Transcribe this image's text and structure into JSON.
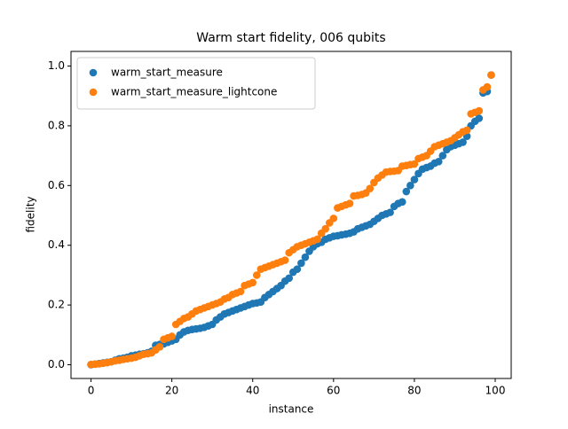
{
  "chart_data": {
    "type": "scatter",
    "title": "Warm start fidelity, 006 qubits",
    "xlabel": "instance",
    "ylabel": "fidelity",
    "x": [
      0,
      1,
      2,
      3,
      4,
      5,
      6,
      7,
      8,
      9,
      10,
      11,
      12,
      13,
      14,
      15,
      16,
      17,
      18,
      19,
      20,
      21,
      22,
      23,
      24,
      25,
      26,
      27,
      28,
      29,
      30,
      31,
      32,
      33,
      34,
      35,
      36,
      37,
      38,
      39,
      40,
      41,
      42,
      43,
      44,
      45,
      46,
      47,
      48,
      49,
      50,
      51,
      52,
      53,
      54,
      55,
      56,
      57,
      58,
      59,
      60,
      61,
      62,
      63,
      64,
      65,
      66,
      67,
      68,
      69,
      70,
      71,
      72,
      73,
      74,
      75,
      76,
      77,
      78,
      79,
      80,
      81,
      82,
      83,
      84,
      85,
      86,
      87,
      88,
      89,
      90,
      91,
      92,
      93,
      94,
      95,
      96,
      97,
      98,
      99
    ],
    "series": [
      {
        "name": "warm_start_measure",
        "color": "#1f77b4",
        "values": [
          0.0,
          0.002,
          0.004,
          0.006,
          0.008,
          0.01,
          0.015,
          0.02,
          0.022,
          0.025,
          0.03,
          0.032,
          0.035,
          0.037,
          0.04,
          0.045,
          0.065,
          0.068,
          0.07,
          0.075,
          0.08,
          0.085,
          0.1,
          0.11,
          0.115,
          0.118,
          0.12,
          0.122,
          0.125,
          0.13,
          0.135,
          0.15,
          0.16,
          0.17,
          0.175,
          0.18,
          0.185,
          0.19,
          0.195,
          0.2,
          0.205,
          0.207,
          0.21,
          0.225,
          0.235,
          0.245,
          0.255,
          0.265,
          0.28,
          0.29,
          0.31,
          0.32,
          0.34,
          0.36,
          0.38,
          0.395,
          0.405,
          0.41,
          0.42,
          0.425,
          0.43,
          0.432,
          0.435,
          0.437,
          0.44,
          0.445,
          0.455,
          0.46,
          0.465,
          0.47,
          0.48,
          0.49,
          0.5,
          0.505,
          0.51,
          0.53,
          0.54,
          0.545,
          0.58,
          0.6,
          0.62,
          0.64,
          0.655,
          0.66,
          0.665,
          0.675,
          0.68,
          0.7,
          0.72,
          0.73,
          0.735,
          0.74,
          0.745,
          0.765,
          0.8,
          0.815,
          0.825,
          0.91,
          0.915,
          0.97
        ]
      },
      {
        "name": "warm_start_measure_lightcone",
        "color": "#ff7f0e",
        "values": [
          0.001,
          0.002,
          0.003,
          0.005,
          0.007,
          0.01,
          0.013,
          0.015,
          0.018,
          0.02,
          0.022,
          0.025,
          0.03,
          0.035,
          0.037,
          0.04,
          0.05,
          0.06,
          0.085,
          0.09,
          0.095,
          0.135,
          0.145,
          0.155,
          0.16,
          0.17,
          0.18,
          0.185,
          0.19,
          0.195,
          0.2,
          0.205,
          0.21,
          0.22,
          0.225,
          0.235,
          0.24,
          0.245,
          0.265,
          0.27,
          0.275,
          0.3,
          0.32,
          0.325,
          0.33,
          0.335,
          0.34,
          0.345,
          0.35,
          0.375,
          0.385,
          0.395,
          0.4,
          0.405,
          0.41,
          0.415,
          0.42,
          0.44,
          0.455,
          0.475,
          0.49,
          0.525,
          0.53,
          0.535,
          0.54,
          0.565,
          0.567,
          0.57,
          0.575,
          0.59,
          0.61,
          0.625,
          0.635,
          0.645,
          0.647,
          0.648,
          0.65,
          0.665,
          0.667,
          0.67,
          0.672,
          0.69,
          0.695,
          0.7,
          0.715,
          0.73,
          0.735,
          0.74,
          0.745,
          0.75,
          0.76,
          0.77,
          0.78,
          0.785,
          0.84,
          0.845,
          0.85,
          0.92,
          0.93,
          0.97
        ]
      }
    ],
    "xlim": [
      -4.95,
      103.95
    ],
    "ylim": [
      -0.046,
      1.049
    ],
    "xticks": [
      0,
      20,
      40,
      60,
      80,
      100
    ],
    "yticks": [
      {
        "value": 0,
        "label": "0.0"
      },
      {
        "value": 0.2,
        "label": "0.2"
      },
      {
        "value": 0.4,
        "label": "0.4"
      },
      {
        "value": 0.6,
        "label": "0.6"
      },
      {
        "value": 0.8,
        "label": "0.8"
      },
      {
        "value": 1.0,
        "label": "1.0"
      }
    ],
    "legend": "upper left"
  }
}
